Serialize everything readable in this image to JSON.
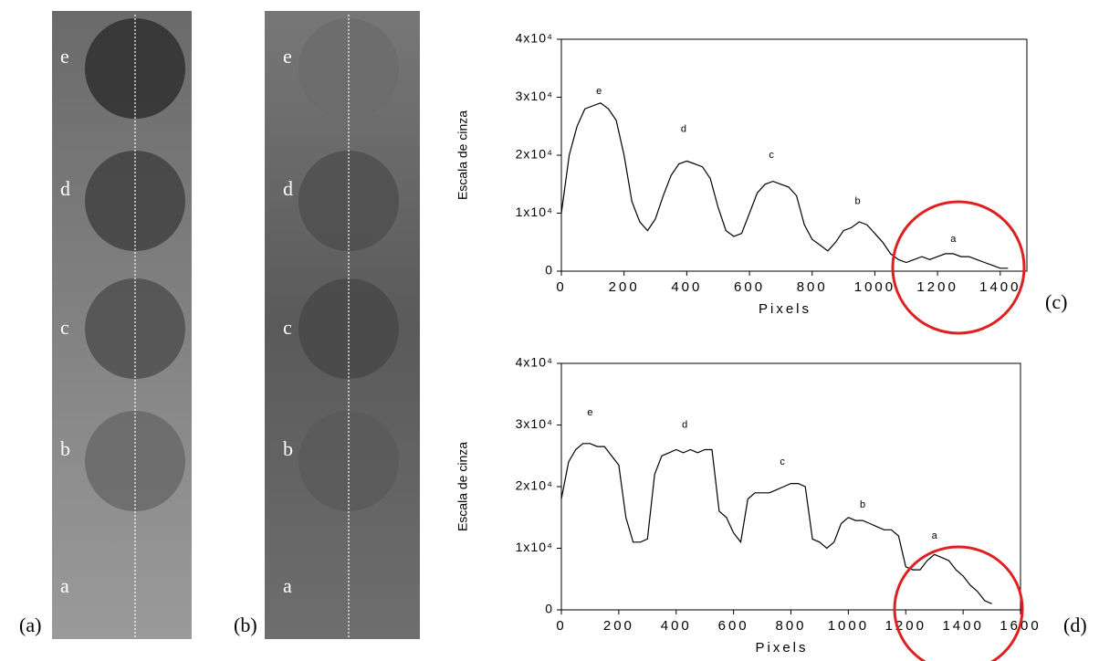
{
  "images": [
    {
      "label": "(a)",
      "spots": [
        "e",
        "d",
        "c",
        "b",
        "a"
      ]
    },
    {
      "label": "(b)",
      "spots": [
        "e",
        "d",
        "c",
        "b",
        "a"
      ]
    }
  ],
  "chart_data": [
    {
      "type": "line",
      "panel_label": "(c)",
      "xlabel": "Pixels",
      "ylabel": "Escala de cinza",
      "color": "#000000",
      "highlight_color": "#e02020",
      "annotations": [
        "e",
        "d",
        "c",
        "b",
        "a"
      ],
      "x": [
        0,
        25,
        50,
        75,
        100,
        125,
        150,
        175,
        200,
        225,
        250,
        275,
        300,
        325,
        350,
        375,
        400,
        425,
        450,
        475,
        500,
        525,
        550,
        575,
        600,
        625,
        650,
        675,
        700,
        725,
        750,
        775,
        800,
        825,
        850,
        875,
        900,
        925,
        950,
        975,
        1000,
        1025,
        1050,
        1075,
        1100,
        1125,
        1150,
        1175,
        1200,
        1225,
        1250,
        1275,
        1300,
        1325,
        1350,
        1375,
        1400,
        1425
      ],
      "values": [
        10000,
        20000,
        25000,
        28000,
        28500,
        29000,
        28000,
        26000,
        20000,
        12000,
        8500,
        7000,
        9000,
        13000,
        16500,
        18500,
        19000,
        18500,
        18000,
        16000,
        11000,
        7000,
        6000,
        6500,
        10000,
        13500,
        15000,
        15500,
        15000,
        14500,
        13000,
        8000,
        5500,
        4500,
        3500,
        5000,
        7000,
        7500,
        8500,
        8000,
        6500,
        5000,
        3000,
        2000,
        1500,
        2000,
        2500,
        2000,
        2500,
        3000,
        3000,
        2500,
        2500,
        2000,
        1500,
        1000,
        500,
        500
      ],
      "xlim": [
        0,
        1485
      ],
      "ylim": [
        0,
        40000
      ],
      "xticks": [
        0,
        200,
        400,
        600,
        800,
        1000,
        1200,
        1400
      ],
      "yticks": [
        0,
        {
          "value": 10000,
          "label": "1x10⁴"
        },
        {
          "value": 20000,
          "label": "2x10⁴"
        },
        {
          "value": 30000,
          "label": "3x10⁴"
        },
        {
          "value": 40000,
          "label": "4x10⁴"
        }
      ]
    },
    {
      "type": "line",
      "panel_label": "(d)",
      "xlabel": "Pixels",
      "ylabel": "Escala de cinza",
      "color": "#000000",
      "highlight_color": "#e02020",
      "annotations": [
        "e",
        "d",
        "c",
        "b",
        "a"
      ],
      "x": [
        0,
        25,
        50,
        75,
        100,
        125,
        150,
        175,
        200,
        225,
        250,
        275,
        300,
        325,
        350,
        375,
        400,
        425,
        450,
        475,
        500,
        525,
        550,
        575,
        600,
        625,
        650,
        675,
        700,
        725,
        750,
        775,
        800,
        825,
        850,
        875,
        900,
        925,
        950,
        975,
        1000,
        1025,
        1050,
        1075,
        1100,
        1125,
        1150,
        1175,
        1200,
        1225,
        1250,
        1275,
        1300,
        1325,
        1350,
        1375,
        1400,
        1425,
        1450,
        1475,
        1500
      ],
      "values": [
        18000,
        24000,
        26000,
        27000,
        27000,
        26500,
        26500,
        25000,
        23500,
        15000,
        11000,
        11000,
        11500,
        22000,
        25000,
        25500,
        26000,
        25500,
        26000,
        25500,
        26000,
        26000,
        16000,
        15000,
        12500,
        11000,
        18000,
        19000,
        19000,
        19000,
        19500,
        20000,
        20500,
        20500,
        20000,
        11500,
        11000,
        10000,
        11000,
        14000,
        15000,
        14500,
        14500,
        14000,
        13500,
        13000,
        13000,
        12000,
        7000,
        6500,
        6500,
        8000,
        9000,
        8500,
        8000,
        6500,
        5500,
        4000,
        3000,
        1500,
        1000
      ],
      "xlim": [
        0,
        1600
      ],
      "ylim": [
        0,
        40000
      ],
      "xticks": [
        0,
        200,
        400,
        600,
        800,
        1000,
        1200,
        1400,
        1600
      ],
      "yticks": [
        0,
        {
          "value": 10000,
          "label": "1x10⁴"
        },
        {
          "value": 20000,
          "label": "2x10⁴"
        },
        {
          "value": 30000,
          "label": "3x10⁴"
        },
        {
          "value": 40000,
          "label": "4x10⁴"
        }
      ]
    }
  ]
}
